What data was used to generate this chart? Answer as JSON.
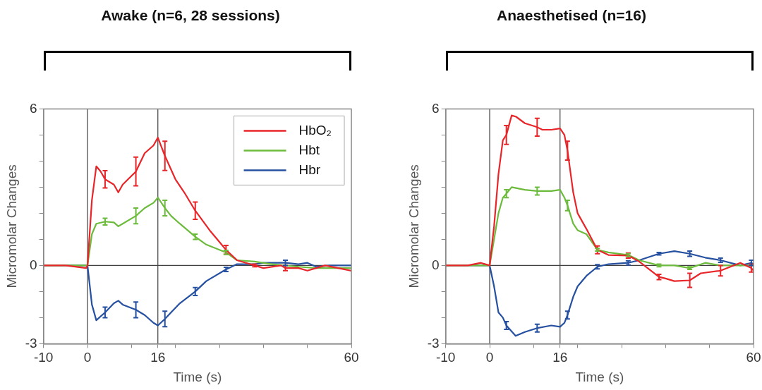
{
  "chart_data": [
    {
      "type": "line",
      "title": "Awake (n=6, 28 sessions)",
      "xlabel": "Time (s)",
      "ylabel": "Micromolar Changes",
      "xlim": [
        -10,
        60
      ],
      "xticks": [
        -10,
        0,
        {
          "value": 10,
          "label": null
        },
        16,
        {
          "value": 20,
          "label": null
        },
        {
          "value": 30,
          "label": null
        },
        {
          "value": 40,
          "label": null
        },
        {
          "value": 50,
          "label": null
        },
        60
      ],
      "ylim": [
        -3,
        6
      ],
      "yticks": [
        -3,
        {
          "value": -2,
          "label": null
        },
        {
          "value": -1,
          "label": null
        },
        0,
        {
          "value": 1,
          "label": null
        },
        {
          "value": 2,
          "label": null
        },
        {
          "value": 3,
          "label": null
        },
        {
          "value": 4,
          "label": null
        },
        {
          "value": 5,
          "label": null
        },
        6
      ],
      "grid": false,
      "legend": "top right",
      "marker": "none",
      "line_style": "solid",
      "ref_lines": [
        {
          "axis": "x",
          "value": 0,
          "color": "#404040"
        },
        {
          "axis": "x",
          "value": 16,
          "color": "#404040"
        },
        {
          "axis": "y",
          "value": 0,
          "color": "#404040"
        }
      ],
      "series": [
        {
          "name": "HbO₂",
          "color": "#e8262a",
          "x": [
            -10,
            -5,
            -0.3,
            0,
            1,
            2,
            3,
            4,
            6,
            7,
            8,
            11,
            13,
            15,
            16,
            17.6,
            20,
            22,
            24.5,
            28,
            31.5,
            34,
            36,
            38,
            40,
            44,
            45,
            48,
            50,
            52,
            54,
            57,
            60
          ],
          "values": [
            0,
            0,
            -0.1,
            0,
            2.5,
            3.8,
            3.6,
            3.3,
            3.1,
            2.8,
            3.1,
            3.6,
            4.3,
            4.6,
            4.9,
            4.2,
            3.3,
            2.8,
            2.1,
            1.3,
            0.6,
            0.2,
            0.1,
            0,
            -0.1,
            0,
            -0.1,
            -0.1,
            -0.2,
            -0.1,
            0,
            -0.1,
            -0.2
          ],
          "errors": [
            null,
            null,
            null,
            null,
            null,
            null,
            null,
            0.33,
            null,
            null,
            null,
            0.55,
            null,
            null,
            null,
            0.56,
            null,
            null,
            0.33,
            null,
            0.17,
            null,
            null,
            0.05,
            null,
            null,
            0.1,
            null,
            null,
            null,
            null,
            null,
            null
          ]
        },
        {
          "name": "Hbt",
          "color": "#6cbb3c",
          "x": [
            -10,
            -5,
            0,
            1,
            2,
            4,
            6,
            7,
            8,
            11,
            13,
            15,
            16,
            17.6,
            19,
            21,
            24.5,
            27,
            31.5,
            34,
            38,
            42,
            48,
            52,
            60
          ],
          "values": [
            0,
            0,
            0,
            1.2,
            1.6,
            1.68,
            1.65,
            1.5,
            1.6,
            1.9,
            2.2,
            2.4,
            2.6,
            2.2,
            1.9,
            1.6,
            1.1,
            0.8,
            0.5,
            0.2,
            0.15,
            0.05,
            -0.05,
            -0.1,
            -0.1
          ],
          "errors": [
            null,
            null,
            null,
            null,
            null,
            0.13,
            null,
            null,
            null,
            0.3,
            null,
            null,
            null,
            0.3,
            null,
            null,
            0.1,
            null,
            0.08,
            null,
            null,
            null,
            null,
            null,
            null
          ]
        },
        {
          "name": "Hbr",
          "color": "#2650a0",
          "x": [
            -10,
            -5,
            0,
            1,
            2,
            4,
            6,
            7,
            8,
            11,
            13,
            15,
            16,
            17.6,
            19,
            21,
            24.5,
            27,
            31.5,
            34,
            38,
            40,
            45,
            48,
            50,
            52,
            55,
            60
          ],
          "values": [
            0,
            0,
            0,
            -1.5,
            -2.1,
            -1.8,
            -1.45,
            -1.35,
            -1.5,
            -1.7,
            -1.9,
            -2.2,
            -2.3,
            -2.05,
            -1.8,
            -1.45,
            -1.0,
            -0.6,
            -0.15,
            0.05,
            0.05,
            0.1,
            0.1,
            0.05,
            0.1,
            -0.05,
            0,
            0
          ],
          "errors": [
            null,
            null,
            null,
            null,
            null,
            0.2,
            null,
            null,
            null,
            0.3,
            null,
            null,
            null,
            0.3,
            null,
            null,
            0.15,
            null,
            0.08,
            null,
            null,
            null,
            0.1,
            null,
            null,
            null,
            null,
            null
          ]
        }
      ]
    },
    {
      "type": "line",
      "title": "Anaesthetised (n=16)",
      "xlabel": "Time (s)",
      "ylabel": "Micromolar Changes",
      "xlim": [
        -10,
        60
      ],
      "xticks": [
        -10,
        0,
        {
          "value": 10,
          "label": null
        },
        16,
        {
          "value": 20,
          "label": null
        },
        {
          "value": 30,
          "label": null
        },
        {
          "value": 40,
          "label": null
        },
        {
          "value": 50,
          "label": null
        },
        60
      ],
      "ylim": [
        -3,
        6
      ],
      "yticks": [
        -3,
        {
          "value": -2,
          "label": null
        },
        {
          "value": -1,
          "label": null
        },
        0,
        {
          "value": 1,
          "label": null
        },
        {
          "value": 2,
          "label": null
        },
        {
          "value": 3,
          "label": null
        },
        {
          "value": 4,
          "label": null
        },
        {
          "value": 5,
          "label": null
        },
        6
      ],
      "grid": false,
      "marker": "none",
      "line_style": "solid",
      "ref_lines": [
        {
          "axis": "x",
          "value": 0,
          "color": "#404040"
        },
        {
          "axis": "x",
          "value": 16,
          "color": "#404040"
        },
        {
          "axis": "y",
          "value": 0,
          "color": "#404040"
        }
      ],
      "series": [
        {
          "color": "#e8262a",
          "x": [
            -10,
            -5,
            -2,
            0,
            1,
            2,
            3,
            3.8,
            5,
            6,
            8,
            10.8,
            12,
            14,
            16,
            17,
            17.7,
            19,
            20,
            22,
            24.5,
            27,
            31.5,
            34,
            38.5,
            40,
            42,
            45.5,
            48,
            52.5,
            57,
            59.5,
            60
          ],
          "values": [
            0,
            0,
            0.1,
            0,
            1.5,
            3.5,
            4.8,
            5.0,
            5.75,
            5.7,
            5.45,
            5.3,
            5.2,
            5.2,
            5.25,
            5.0,
            4.4,
            2.8,
            2.0,
            1.4,
            0.6,
            0.4,
            0.38,
            0.15,
            -0.44,
            -0.5,
            -0.6,
            -0.57,
            -0.3,
            -0.2,
            0.1,
            -0.1,
            -0.2
          ],
          "errors": [
            null,
            null,
            null,
            null,
            null,
            null,
            null,
            0.36,
            null,
            null,
            null,
            0.34,
            null,
            null,
            null,
            null,
            0.36,
            null,
            null,
            null,
            0.15,
            null,
            0.1,
            null,
            0.1,
            null,
            null,
            0.27,
            null,
            0.2,
            null,
            0.15,
            null
          ]
        },
        {
          "color": "#6cbb3c",
          "x": [
            -10,
            -5,
            0,
            1,
            2,
            3,
            3.8,
            5,
            8,
            10.8,
            14,
            16,
            17,
            17.7,
            19,
            20,
            22,
            24.5,
            27,
            31.5,
            34,
            38.5,
            42,
            45.5,
            49,
            52.5,
            57,
            60
          ],
          "values": [
            0,
            0,
            0,
            1.0,
            2.0,
            2.6,
            2.75,
            3.0,
            2.9,
            2.85,
            2.85,
            2.9,
            2.6,
            2.3,
            1.6,
            1.35,
            1.2,
            0.6,
            0.5,
            0.4,
            0.2,
            0.0,
            0.0,
            -0.1,
            0.1,
            0.0,
            0.0,
            0
          ],
          "errors": [
            null,
            null,
            null,
            null,
            null,
            null,
            0.15,
            null,
            null,
            0.15,
            null,
            null,
            null,
            0.2,
            null,
            null,
            null,
            0.05,
            null,
            0.05,
            null,
            0.05,
            null,
            0.05,
            null,
            null,
            null,
            null
          ]
        },
        {
          "color": "#2650a0",
          "x": [
            -10,
            -5,
            0,
            1,
            2,
            3,
            3.8,
            5.9,
            8,
            10.8,
            14,
            16,
            17,
            17.7,
            19,
            20,
            22,
            24.5,
            27,
            31.5,
            34,
            38.5,
            42,
            45.5,
            49,
            52.5,
            57,
            59.5,
            60
          ],
          "values": [
            0,
            0,
            0,
            -0.8,
            -1.8,
            -2.0,
            -2.3,
            -2.7,
            -2.55,
            -2.4,
            -2.3,
            -2.35,
            -2.2,
            -1.9,
            -1.2,
            -0.8,
            -0.4,
            -0.05,
            0.05,
            0.1,
            0.2,
            0.45,
            0.55,
            0.45,
            0.3,
            0.2,
            0,
            0.1,
            0.05
          ],
          "errors": [
            null,
            null,
            null,
            null,
            null,
            null,
            0.15,
            null,
            null,
            0.15,
            null,
            null,
            null,
            0.15,
            null,
            null,
            null,
            0.08,
            null,
            0.08,
            null,
            0.05,
            null,
            0.1,
            null,
            0.08,
            null,
            0.1,
            null
          ]
        }
      ]
    }
  ]
}
